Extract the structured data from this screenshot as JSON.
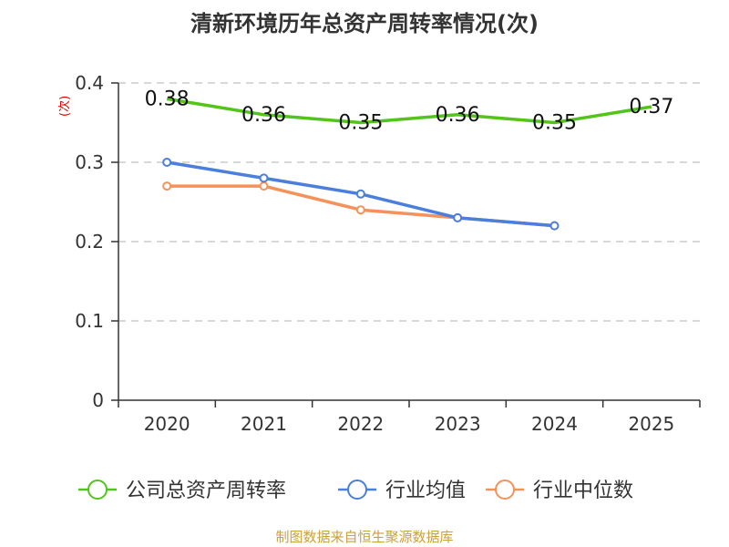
{
  "title": "清新环境历年总资产周转率情况(次)",
  "source": "制图数据来自恒生聚源数据库",
  "chart_data": {
    "type": "line",
    "title": "清新环境历年总资产周转率情况(次)",
    "xlabel": "",
    "ylabel": "(次)",
    "categories": [
      "2020",
      "2021",
      "2022",
      "2023",
      "2024",
      "2025"
    ],
    "ylim": [
      0,
      0.4
    ],
    "yticks": [
      0,
      0.1,
      0.2,
      0.3,
      0.4
    ],
    "ytick_labels": [
      "0",
      "0.1",
      "0.2",
      "0.3",
      "0.4"
    ],
    "grid": true,
    "legend_position": "bottom",
    "series": [
      {
        "name": "公司总资产周转率",
        "color": "#52c41a",
        "values": [
          0.38,
          0.36,
          0.35,
          0.36,
          0.35,
          0.37
        ],
        "labels": [
          "0.38",
          "0.36",
          "0.35",
          "0.36",
          "0.35",
          "0.37"
        ],
        "markers": false
      },
      {
        "name": "行业均值",
        "color": "#4a7fdb",
        "values": [
          0.3,
          0.28,
          0.26,
          0.23,
          0.22,
          null
        ],
        "markers": true
      },
      {
        "name": "行业中位数",
        "color": "#f5915a",
        "values": [
          0.27,
          0.27,
          0.24,
          0.23,
          0.22,
          null
        ],
        "markers": true
      }
    ]
  }
}
